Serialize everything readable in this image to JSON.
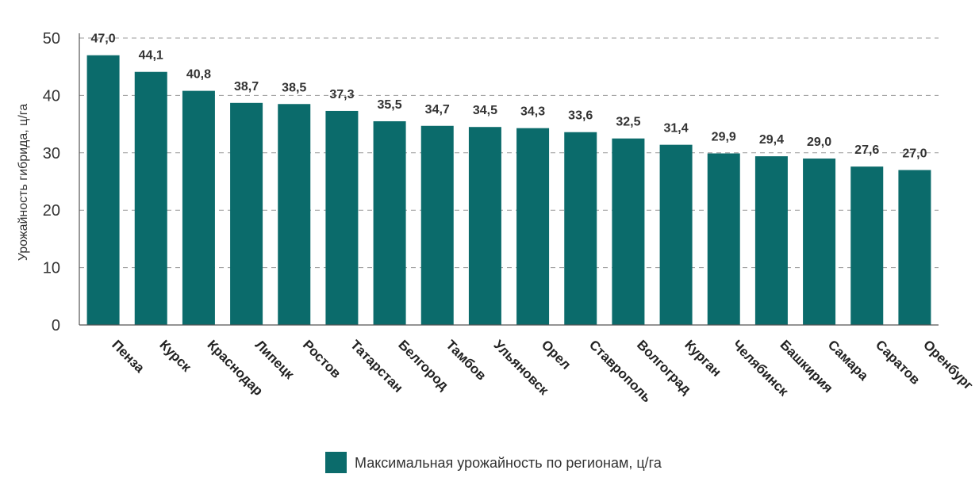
{
  "chart_data": {
    "type": "bar",
    "categories": [
      "Пенза",
      "Курск",
      "Краснодар",
      "Липецк",
      "Ростов",
      "Татарстан",
      "Белгород",
      "Тамбов",
      "Ульяновск",
      "Орел",
      "Ставрополь",
      "Волгоград",
      "Курган",
      "Челябинск",
      "Башкирия",
      "Самара",
      "Саратов",
      "Оренбург"
    ],
    "series": [
      {
        "name": "Максимальная урожайность по регионам, ц/га",
        "values": [
          47.0,
          44.1,
          40.8,
          38.7,
          38.5,
          37.3,
          35.5,
          34.7,
          34.5,
          34.3,
          33.6,
          32.5,
          31.4,
          29.9,
          29.4,
          29.0,
          27.6,
          27.0
        ],
        "data_labels": [
          "47,0",
          "44,1",
          "40,8",
          "38,7",
          "38,5",
          "37,3",
          "35,5",
          "34,7",
          "34,5",
          "34,3",
          "33,6",
          "32,5",
          "31,4",
          "29,9",
          "29,4",
          "29,0",
          "27,6",
          "27,0"
        ],
        "color": "#0b6b6b"
      }
    ],
    "title": "",
    "xlabel": "",
    "ylabel": "Урожайность гибрида, ц/га",
    "ylim": [
      0,
      50
    ],
    "yticks": [
      0,
      10,
      20,
      30,
      40,
      50
    ],
    "grid": true,
    "legend_position": "bottom"
  }
}
